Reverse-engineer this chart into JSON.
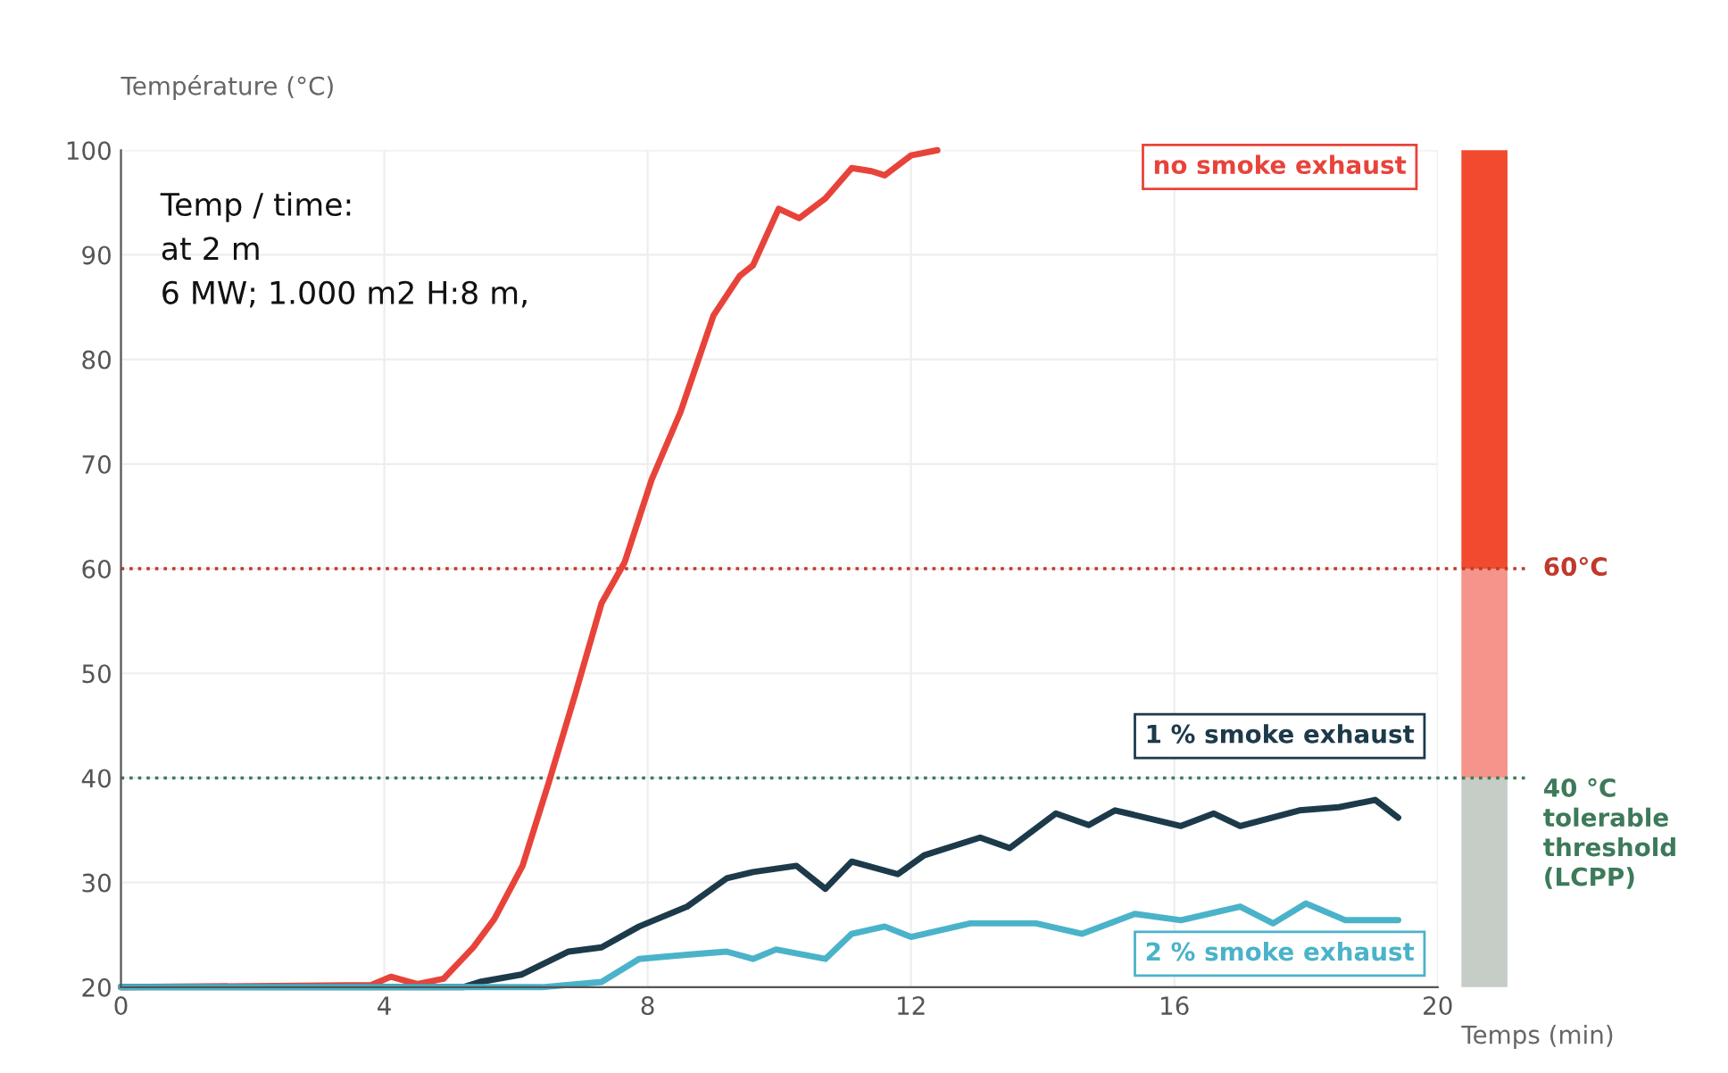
{
  "chart_data": {
    "type": "line",
    "ylabel": "Température (°C)",
    "xlabel": "Temps (min)",
    "annotations": [
      "Temp / time:\nat 2 m\n6 MW; 1.000 m2 H:8 m,"
    ],
    "xlim": [
      0,
      20
    ],
    "xticks": [
      0,
      4,
      8,
      12,
      16,
      20
    ],
    "ylim": [
      20,
      100
    ],
    "yticks": [
      20,
      30,
      40,
      50,
      60,
      70,
      80,
      90,
      100
    ],
    "grid": true,
    "legend": false,
    "line_style": "solid",
    "marker": "none",
    "series": [
      {
        "name": "no smoke exhaust",
        "color": "#e8433a",
        "x": [
          0,
          3.8,
          4.1,
          4.5,
          4.9,
          5.35,
          5.67,
          6.1,
          6.5,
          6.9,
          7.3,
          7.65,
          8.06,
          8.5,
          9.0,
          9.4,
          9.6,
          9.99,
          10.3,
          10.7,
          11.1,
          11.4,
          11.6,
          12.0,
          12.4
        ],
        "values": [
          20,
          20.2,
          21,
          20.3,
          20.8,
          23.8,
          26.5,
          31.6,
          39.6,
          48,
          56.7,
          60.6,
          68.5,
          75,
          84.2,
          88,
          89,
          94.4,
          93.5,
          95.4,
          98.3,
          98,
          97.6,
          99.5,
          100
        ]
      },
      {
        "name": "1 % smoke exhaust",
        "color": "#1d3a4a",
        "x": [
          0,
          5.2,
          5.45,
          6.08,
          6.8,
          7.3,
          7.87,
          8.6,
          9.2,
          9.6,
          10.26,
          10.7,
          11.1,
          11.8,
          12.2,
          13.05,
          13.5,
          14.2,
          14.7,
          15.1,
          16.1,
          16.6,
          17.0,
          17.9,
          18.5,
          19.05,
          19.4
        ],
        "values": [
          20,
          20,
          20.5,
          21.2,
          23.4,
          23.8,
          25.8,
          27.7,
          30.4,
          31,
          31.6,
          29.4,
          32,
          30.8,
          32.6,
          34.3,
          33.3,
          36.6,
          35.5,
          36.9,
          35.4,
          36.6,
          35.4,
          36.9,
          37.2,
          37.9,
          36.2
        ]
      },
      {
        "name": "2 % smoke exhaust",
        "color": "#4ab3c9",
        "x": [
          0,
          6.4,
          7.3,
          7.87,
          8.6,
          9.2,
          9.6,
          9.95,
          10.7,
          11.1,
          11.6,
          12.0,
          12.9,
          13.9,
          14.6,
          15.4,
          16.1,
          17.0,
          17.5,
          18.0,
          18.6,
          19.4
        ],
        "values": [
          20,
          20,
          20.5,
          22.7,
          23.1,
          23.4,
          22.7,
          23.6,
          22.7,
          25.1,
          25.8,
          24.8,
          26.1,
          26.1,
          25.1,
          27,
          26.4,
          27.7,
          26.1,
          28,
          26.4,
          26.4
        ]
      }
    ],
    "ref_lines": [
      {
        "axis": "y",
        "value": 60,
        "label": "60°C",
        "color": "#c0392b",
        "line_style": "dotted"
      },
      {
        "axis": "y",
        "value": 40,
        "label": "40 °C\ntolerable\nthreshold\n(LCPP)",
        "color": "#3d7a5a",
        "line_style": "dotted"
      }
    ]
  }
}
